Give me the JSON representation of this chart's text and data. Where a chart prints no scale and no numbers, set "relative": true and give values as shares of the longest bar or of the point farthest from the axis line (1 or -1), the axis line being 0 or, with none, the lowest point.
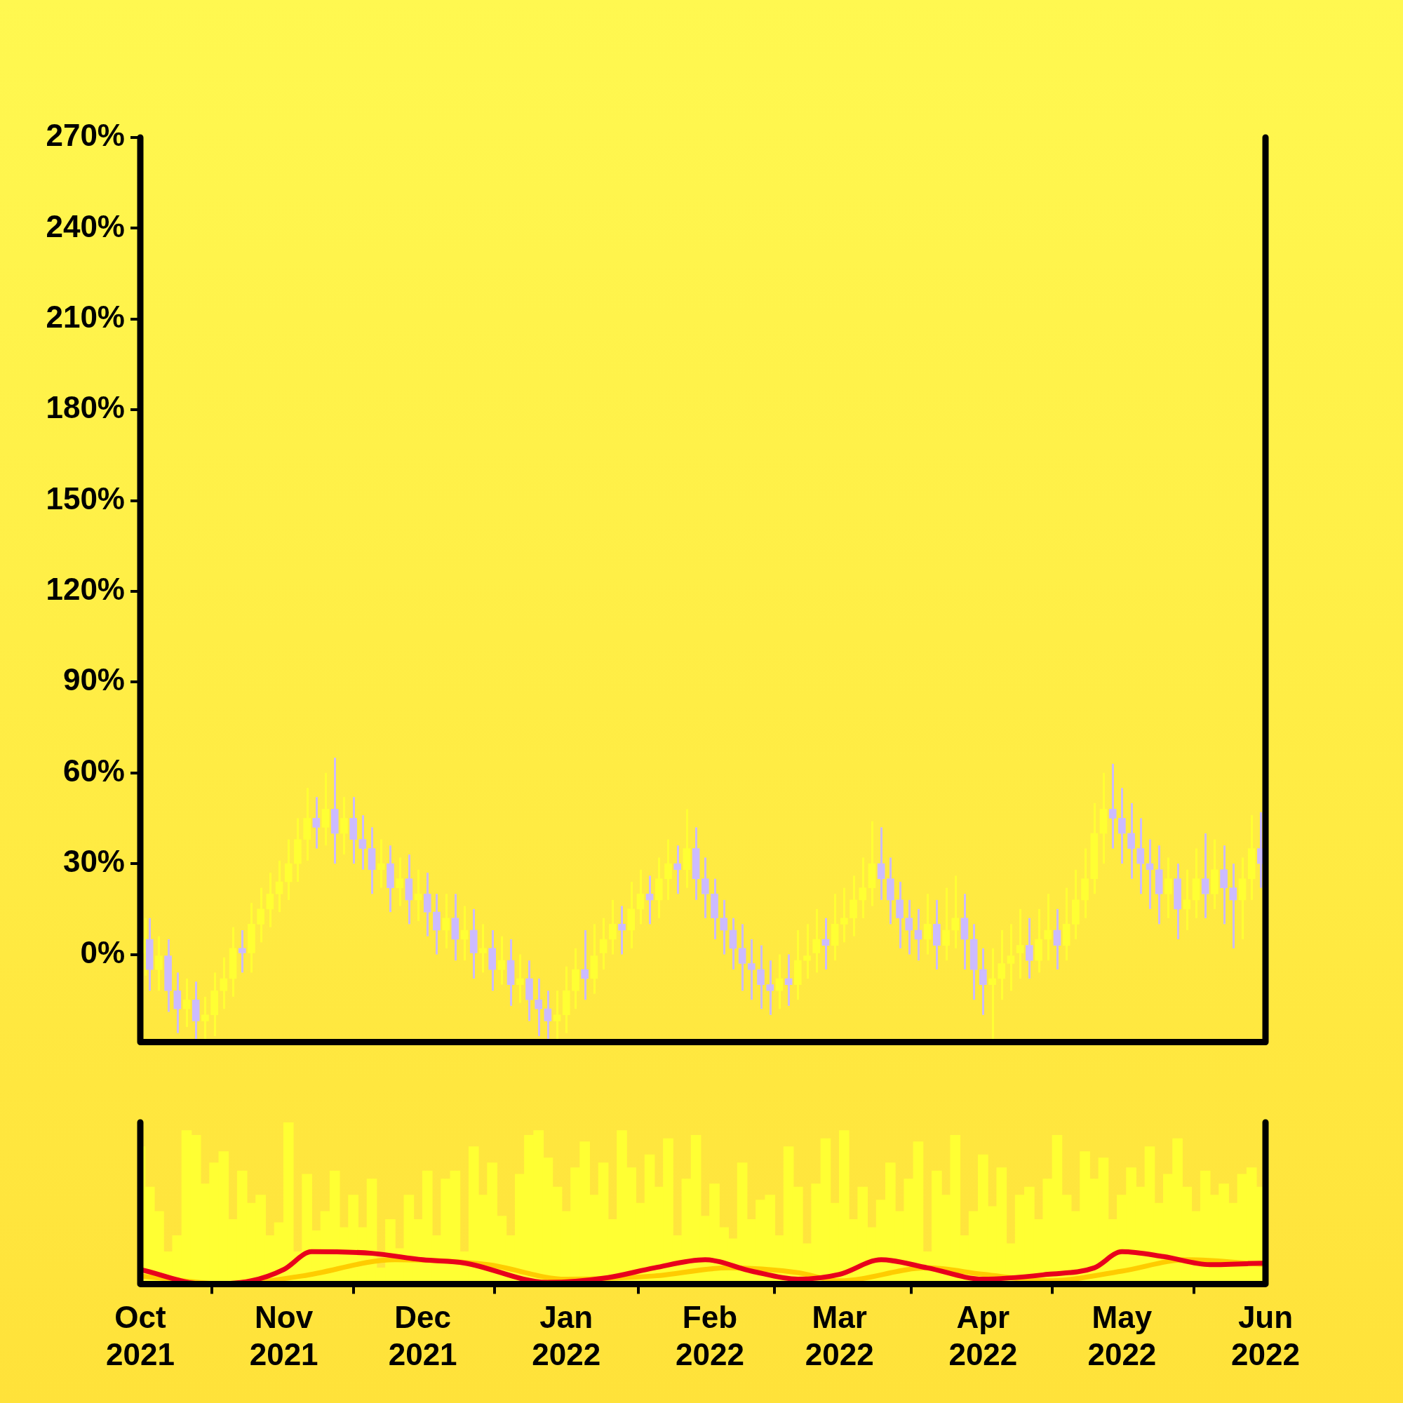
{
  "chart_data": [
    {
      "type": "candlestick",
      "tick_labels": "y",
      "xlim": [
        "2021-10-01",
        "2022-06-01"
      ],
      "ylim": [
        -29,
        270
      ],
      "yticks": [
        {
          "value": 0,
          "label": "0%"
        },
        {
          "value": 30,
          "label": "30%"
        },
        {
          "value": 60,
          "label": "60%"
        },
        {
          "value": 90,
          "label": "90%"
        },
        {
          "value": 120,
          "label": "120%"
        },
        {
          "value": 150,
          "label": "150%"
        },
        {
          "value": 180,
          "label": "180%"
        },
        {
          "value": 210,
          "label": "210%"
        },
        {
          "value": 240,
          "label": "240%"
        },
        {
          "value": 270,
          "label": "270%"
        }
      ],
      "x": [
        "2021-10-02",
        "2021-10-03",
        "2021-10-05",
        "2021-10-07",
        "2021-10-09",
        "2021-10-11",
        "2021-10-13",
        "2021-10-15",
        "2021-10-17",
        "2021-10-19",
        "2021-10-21",
        "2021-10-23",
        "2021-10-25",
        "2021-10-27",
        "2021-10-29",
        "2021-10-31",
        "2021-11-02",
        "2021-11-04",
        "2021-11-06",
        "2021-11-08",
        "2021-11-10",
        "2021-11-12",
        "2021-11-14",
        "2021-11-16",
        "2021-11-18",
        "2021-11-20",
        "2021-11-22",
        "2021-11-24",
        "2021-11-26",
        "2021-11-28",
        "2021-11-30",
        "2021-12-02",
        "2021-12-04",
        "2021-12-06",
        "2021-12-08",
        "2021-12-10",
        "2021-12-12",
        "2021-12-14",
        "2021-12-16",
        "2021-12-18",
        "2021-12-20",
        "2021-12-22",
        "2021-12-24",
        "2021-12-26",
        "2021-12-28",
        "2021-12-30",
        "2022-01-01",
        "2022-01-03",
        "2022-01-05",
        "2022-01-07",
        "2022-01-09",
        "2022-01-11",
        "2022-01-13",
        "2022-01-15",
        "2022-01-17",
        "2022-01-19",
        "2022-01-21",
        "2022-01-23",
        "2022-01-25",
        "2022-01-27",
        "2022-01-29",
        "2022-01-31",
        "2022-02-02",
        "2022-02-04",
        "2022-02-06",
        "2022-02-08",
        "2022-02-10",
        "2022-02-12",
        "2022-02-14",
        "2022-02-16",
        "2022-02-18",
        "2022-02-20",
        "2022-02-22",
        "2022-02-24",
        "2022-02-26",
        "2022-02-28",
        "2022-03-02",
        "2022-03-04",
        "2022-03-06",
        "2022-03-08",
        "2022-03-10",
        "2022-03-12",
        "2022-03-14",
        "2022-03-16",
        "2022-03-18",
        "2022-03-20",
        "2022-03-22",
        "2022-03-24",
        "2022-03-26",
        "2022-03-28",
        "2022-03-30",
        "2022-04-01",
        "2022-04-03",
        "2022-04-05",
        "2022-04-07",
        "2022-04-09",
        "2022-04-11",
        "2022-04-13",
        "2022-04-15",
        "2022-04-17",
        "2022-04-19",
        "2022-04-21",
        "2022-04-23",
        "2022-04-25",
        "2022-04-27",
        "2022-04-29",
        "2022-05-01",
        "2022-05-03",
        "2022-05-05",
        "2022-05-07",
        "2022-05-09",
        "2022-05-11",
        "2022-05-13",
        "2022-05-15",
        "2022-05-17",
        "2022-05-19",
        "2022-05-21",
        "2022-05-23",
        "2022-05-25",
        "2022-05-27",
        "2022-05-29",
        "2022-05-31"
      ],
      "ohlc": [
        [
          0,
          12,
          -7,
          5
        ],
        [
          5,
          12,
          -12,
          -5
        ],
        [
          -5,
          6,
          -12,
          0
        ],
        [
          0,
          5,
          -19,
          -12
        ],
        [
          -12,
          -6,
          -26,
          -18
        ],
        [
          -18,
          -8,
          -24,
          -15
        ],
        [
          -15,
          -9,
          -28,
          -22
        ],
        [
          -22,
          -14,
          -28,
          -20
        ],
        [
          -20,
          -6,
          -27,
          -12
        ],
        [
          -12,
          -1,
          -18,
          -8
        ],
        [
          -8,
          9,
          -14,
          2
        ],
        [
          2,
          8,
          -6,
          0
        ],
        [
          0,
          17,
          -6,
          10
        ],
        [
          10,
          22,
          4,
          15
        ],
        [
          15,
          27,
          9,
          20
        ],
        [
          20,
          31,
          14,
          24
        ],
        [
          24,
          38,
          18,
          30
        ],
        [
          30,
          45,
          24,
          38
        ],
        [
          38,
          55,
          31,
          45
        ],
        [
          45,
          52,
          35,
          42
        ],
        [
          42,
          60,
          36,
          48
        ],
        [
          48,
          65,
          30,
          40
        ],
        [
          40,
          52,
          33,
          45
        ],
        [
          45,
          52,
          30,
          38
        ],
        [
          38,
          46,
          28,
          35
        ],
        [
          35,
          42,
          20,
          28
        ],
        [
          28,
          38,
          22,
          30
        ],
        [
          30,
          36,
          14,
          22
        ],
        [
          22,
          32,
          16,
          25
        ],
        [
          25,
          33,
          10,
          18
        ],
        [
          18,
          28,
          11,
          20
        ],
        [
          20,
          27,
          6,
          14
        ],
        [
          14,
          20,
          0,
          8
        ],
        [
          8,
          20,
          2,
          12
        ],
        [
          12,
          20,
          -2,
          5
        ],
        [
          5,
          16,
          -2,
          8
        ],
        [
          8,
          15,
          -8,
          0
        ],
        [
          0,
          10,
          -6,
          2
        ],
        [
          2,
          8,
          -12,
          -5
        ],
        [
          -5,
          6,
          -10,
          -2
        ],
        [
          -2,
          5,
          -17,
          -10
        ],
        [
          -10,
          0,
          -16,
          -8
        ],
        [
          -8,
          -2,
          -22,
          -15
        ],
        [
          -15,
          -8,
          -27,
          -18
        ],
        [
          -18,
          -12,
          -28,
          -22
        ],
        [
          -22,
          -12,
          -28,
          -20
        ],
        [
          -20,
          -4,
          -26,
          -12
        ],
        [
          -12,
          2,
          -18,
          -5
        ],
        [
          -5,
          8,
          -15,
          -8
        ],
        [
          -8,
          10,
          -13,
          0
        ],
        [
          0,
          12,
          -5,
          5
        ],
        [
          5,
          18,
          0,
          10
        ],
        [
          10,
          16,
          0,
          8
        ],
        [
          8,
          24,
          2,
          15
        ],
        [
          15,
          28,
          10,
          20
        ],
        [
          20,
          26,
          10,
          18
        ],
        [
          18,
          32,
          12,
          25
        ],
        [
          25,
          38,
          18,
          30
        ],
        [
          30,
          36,
          20,
          28
        ],
        [
          28,
          48,
          22,
          35
        ],
        [
          35,
          42,
          18,
          25
        ],
        [
          25,
          32,
          12,
          20
        ],
        [
          20,
          25,
          5,
          12
        ],
        [
          12,
          18,
          0,
          8
        ],
        [
          8,
          12,
          -5,
          2
        ],
        [
          2,
          10,
          -12,
          -3
        ],
        [
          -3,
          5,
          -15,
          -5
        ],
        [
          -5,
          3,
          -18,
          -10
        ],
        [
          -10,
          -2,
          -20,
          -12
        ],
        [
          -12,
          0,
          -18,
          -8
        ],
        [
          -8,
          0,
          -17,
          -10
        ],
        [
          -10,
          8,
          -15,
          -2
        ],
        [
          -2,
          10,
          -8,
          0
        ],
        [
          0,
          15,
          -6,
          5
        ],
        [
          5,
          12,
          -5,
          3
        ],
        [
          3,
          20,
          -2,
          10
        ],
        [
          10,
          22,
          4,
          12
        ],
        [
          12,
          26,
          6,
          18
        ],
        [
          18,
          32,
          12,
          22
        ],
        [
          22,
          44,
          16,
          30
        ],
        [
          30,
          42,
          18,
          25
        ],
        [
          25,
          32,
          10,
          18
        ],
        [
          18,
          24,
          2,
          12
        ],
        [
          12,
          18,
          0,
          8
        ],
        [
          8,
          15,
          -2,
          5
        ],
        [
          5,
          20,
          0,
          10
        ],
        [
          10,
          18,
          -5,
          3
        ],
        [
          3,
          22,
          -2,
          8
        ],
        [
          8,
          26,
          2,
          12
        ],
        [
          12,
          20,
          -5,
          5
        ],
        [
          5,
          10,
          -15,
          -5
        ],
        [
          -5,
          2,
          -20,
          -10
        ],
        [
          -10,
          2,
          -28,
          -8
        ],
        [
          -8,
          8,
          -15,
          -3
        ],
        [
          -3,
          10,
          -12,
          0
        ],
        [
          0,
          15,
          -8,
          3
        ],
        [
          3,
          12,
          -8,
          -2
        ],
        [
          -2,
          15,
          -6,
          5
        ],
        [
          5,
          20,
          -2,
          8
        ],
        [
          8,
          15,
          -5,
          3
        ],
        [
          3,
          22,
          -2,
          10
        ],
        [
          10,
          28,
          5,
          18
        ],
        [
          18,
          35,
          12,
          25
        ],
        [
          25,
          50,
          20,
          40
        ],
        [
          40,
          60,
          30,
          48
        ],
        [
          48,
          63,
          35,
          45
        ],
        [
          45,
          55,
          30,
          40
        ],
        [
          40,
          50,
          25,
          35
        ],
        [
          35,
          45,
          20,
          30
        ],
        [
          30,
          38,
          15,
          28
        ],
        [
          28,
          36,
          10,
          20
        ],
        [
          20,
          32,
          12,
          25
        ],
        [
          25,
          30,
          5,
          15
        ],
        [
          15,
          28,
          8,
          18
        ],
        [
          18,
          35,
          12,
          25
        ],
        [
          25,
          40,
          12,
          20
        ],
        [
          20,
          38,
          15,
          28
        ],
        [
          28,
          36,
          10,
          22
        ],
        [
          22,
          30,
          2,
          18
        ],
        [
          18,
          32,
          5,
          25
        ],
        [
          25,
          46,
          18,
          35
        ],
        [
          35,
          47,
          22,
          30
        ]
      ],
      "colors": [
        "#ffff33",
        "#ccbbff",
        "#ffff33",
        "#ccbbff",
        "#ccbbff",
        "#ffff33",
        "#ccbbff",
        "#ffff33",
        "#ffff33",
        "#ffff33",
        "#ffff33",
        "#ccbbff",
        "#ffff33",
        "#ffff33",
        "#ffff33",
        "#ffff33",
        "#ffff33",
        "#ffff33",
        "#ffff33",
        "#ccbbff",
        "#ffff33",
        "#ccbbff",
        "#ffff33",
        "#ccbbff",
        "#ccbbff",
        "#ccbbff",
        "#ffff33",
        "#ccbbff",
        "#ffff33",
        "#ccbbff",
        "#ffff33",
        "#ccbbff",
        "#ccbbff",
        "#ffff33",
        "#ccbbff",
        "#ffff33",
        "#ccbbff",
        "#ffff33",
        "#ccbbff",
        "#ffff33",
        "#ccbbff",
        "#ffff33",
        "#ccbbff",
        "#ccbbff",
        "#ccbbff",
        "#ffff33",
        "#ffff33",
        "#ffff33",
        "#ccbbff",
        "#ffff33",
        "#ffff33",
        "#ffff33",
        "#ccbbff",
        "#ffff33",
        "#ffff33",
        "#ccbbff",
        "#ffff33",
        "#ffff33",
        "#ccbbff",
        "#ffff33",
        "#ccbbff",
        "#ccbbff",
        "#ccbbff",
        "#ccbbff",
        "#ccbbff",
        "#ccbbff",
        "#ccbbff",
        "#ccbbff",
        "#ccbbff",
        "#ffff33",
        "#ccbbff",
        "#ffff33",
        "#ffff33",
        "#ffff33",
        "#ccbbff",
        "#ffff33",
        "#ffff33",
        "#ffff33",
        "#ffff33",
        "#ffff33",
        "#ccbbff",
        "#ccbbff",
        "#ccbbff",
        "#ccbbff",
        "#ccbbff",
        "#ffff33",
        "#ccbbff",
        "#ffff33",
        "#ffff33",
        "#ccbbff",
        "#ccbbff",
        "#ccbbff",
        "#ffff33",
        "#ffff33",
        "#ffff33",
        "#ffff33",
        "#ccbbff",
        "#ffff33",
        "#ffff33",
        "#ccbbff",
        "#ffff33",
        "#ffff33",
        "#ffff33",
        "#ffff33",
        "#ffff33",
        "#ccbbff",
        "#ccbbff",
        "#ccbbff",
        "#ccbbff",
        "#ccbbff",
        "#ccbbff",
        "#ffff33",
        "#ccbbff",
        "#ffff33",
        "#ffff33",
        "#ccbbff",
        "#ffff33",
        "#ccbbff",
        "#ccbbff",
        "#ffff33",
        "#ffff33",
        "#ccbbff"
      ]
    },
    {
      "type": "bar",
      "relative": true,
      "tick_labels": "x",
      "xlim": [
        "2021-10-01",
        "2022-06-01"
      ],
      "xticks": [
        {
          "value": "2021-10-01",
          "label": "Oct\n2021"
        },
        {
          "value": "2021-11-01",
          "label": "Nov\n2021"
        },
        {
          "value": "2021-12-01",
          "label": "Dec\n2021"
        },
        {
          "value": "2022-01-01",
          "label": "Jan\n2022"
        },
        {
          "value": "2022-02-01",
          "label": "Feb\n2022"
        },
        {
          "value": "2022-03-01",
          "label": "Mar\n2022"
        },
        {
          "value": "2022-04-01",
          "label": "Apr\n2022"
        },
        {
          "value": "2022-05-01",
          "label": "May\n2022"
        },
        {
          "value": "2022-06-01",
          "label": "Jun\n2022"
        }
      ],
      "x": [
        "2021-10-01",
        "2021-10-03",
        "2021-10-05",
        "2021-10-07",
        "2021-10-09",
        "2021-10-11",
        "2021-10-13",
        "2021-10-15",
        "2021-10-17",
        "2021-10-19",
        "2021-10-21",
        "2021-10-23",
        "2021-10-25",
        "2021-10-27",
        "2021-10-29",
        "2021-10-31",
        "2021-11-02",
        "2021-11-04",
        "2021-11-06",
        "2021-11-08",
        "2021-11-10",
        "2021-11-12",
        "2021-11-14",
        "2021-11-16",
        "2021-11-18",
        "2021-11-20",
        "2021-11-22",
        "2021-11-24",
        "2021-11-26",
        "2021-11-28",
        "2021-11-30",
        "2021-12-02",
        "2021-12-04",
        "2021-12-06",
        "2021-12-08",
        "2021-12-10",
        "2021-12-12",
        "2021-12-14",
        "2021-12-16",
        "2021-12-18",
        "2021-12-20",
        "2021-12-22",
        "2021-12-24",
        "2021-12-26",
        "2021-12-28",
        "2021-12-30",
        "2022-01-01",
        "2022-01-03",
        "2022-01-05",
        "2022-01-07",
        "2022-01-09",
        "2022-01-11",
        "2022-01-13",
        "2022-01-15",
        "2022-01-17",
        "2022-01-19",
        "2022-01-21",
        "2022-01-23",
        "2022-01-25",
        "2022-01-27",
        "2022-01-29",
        "2022-01-31",
        "2022-02-02",
        "2022-02-04",
        "2022-02-06",
        "2022-02-08",
        "2022-02-10",
        "2022-02-12",
        "2022-02-14",
        "2022-02-16",
        "2022-02-18",
        "2022-02-20",
        "2022-02-22",
        "2022-02-24",
        "2022-02-26",
        "2022-02-28",
        "2022-03-02",
        "2022-03-04",
        "2022-03-06",
        "2022-03-08",
        "2022-03-10",
        "2022-03-12",
        "2022-03-14",
        "2022-03-16",
        "2022-03-18",
        "2022-03-20",
        "2022-03-22",
        "2022-03-24",
        "2022-03-26",
        "2022-03-28",
        "2022-03-30",
        "2022-04-01",
        "2022-04-03",
        "2022-04-05",
        "2022-04-07",
        "2022-04-09",
        "2022-04-11",
        "2022-04-13",
        "2022-04-15",
        "2022-04-17",
        "2022-04-19",
        "2022-04-21",
        "2022-04-23",
        "2022-04-25",
        "2022-04-27",
        "2022-04-29",
        "2022-05-01",
        "2022-05-03",
        "2022-05-05",
        "2022-05-07",
        "2022-05-09",
        "2022-05-11",
        "2022-05-13",
        "2022-05-15",
        "2022-05-17",
        "2022-05-19",
        "2022-05-21",
        "2022-05-23",
        "2022-05-25",
        "2022-05-27",
        "2022-05-29",
        "2022-05-31"
      ],
      "series": [
        {
          "type": "bar",
          "color": "#ffff33",
          "values": [
            0.85,
            0.6,
            0.45,
            0.2,
            0.3,
            0.95,
            0.92,
            0.62,
            0.75,
            0.82,
            0.4,
            0.7,
            0.5,
            0.55,
            0.3,
            0.38,
            1,
            0.2,
            0.68,
            0.33,
            0.45,
            0.7,
            0.35,
            0.55,
            0.35,
            0.65,
            0.1,
            0.4,
            0.22,
            0.55,
            0.4,
            0.7,
            0.3,
            0.65,
            0.7,
            0.2,
            0.85,
            0.55,
            0.75,
            0.42,
            0.3,
            0.68,
            0.92,
            0.95,
            0.78,
            0.6,
            0.45,
            0.72,
            0.88,
            0.55,
            0.75,
            0.4,
            0.95,
            0.72,
            0.5,
            0.8,
            0.6,
            0.9,
            0.3,
            0.65,
            0.92,
            0.42,
            0.62,
            0.35,
            0.28,
            0.75,
            0.4,
            0.52,
            0.55,
            0.3,
            0.85,
            0.6,
            0.25,
            0.62,
            0.9,
            0.5,
            0.95,
            0.4,
            0.6,
            0.35,
            0.52,
            0.75,
            0.45,
            0.65,
            0.88,
            0.2,
            0.7,
            0.55,
            0.92,
            0.3,
            0.45,
            0.8,
            0.48,
            0.72,
            0.25,
            0.55,
            0.6,
            0.4,
            0.65,
            0.92,
            0.55,
            0.45,
            0.82,
            0.65,
            0.78,
            0.4,
            0.55,
            0.72,
            0.6,
            0.85,
            0.5,
            0.68,
            0.9,
            0.6,
            0.45,
            0.7,
            0.55,
            0.62,
            0.5,
            0.68,
            0.72,
            0.6
          ]
        },
        {
          "type": "line",
          "color": "#ffcc00",
          "x": [
            "2021-10-01",
            "2021-10-20",
            "2021-11-05",
            "2021-11-25",
            "2021-12-15",
            "2022-01-01",
            "2022-01-20",
            "2022-02-05",
            "2022-02-20",
            "2022-03-01",
            "2022-03-20",
            "2022-04-01",
            "2022-04-15",
            "2022-05-01",
            "2022-05-15",
            "2022-06-01"
          ],
          "values": [
            0.05,
            0,
            0.05,
            0.15,
            0.12,
            0.03,
            0.05,
            0.1,
            0.07,
            0.02,
            0.1,
            0.06,
            0.02,
            0.08,
            0.15,
            0.12
          ]
        },
        {
          "type": "line",
          "color": "#e8001c",
          "x": [
            "2021-10-01",
            "2021-10-15",
            "2021-10-25",
            "2021-11-01",
            "2021-11-07",
            "2021-11-20",
            "2021-12-01",
            "2021-12-10",
            "2021-12-28",
            "2022-01-10",
            "2022-01-20",
            "2022-01-31",
            "2022-02-10",
            "2022-02-20",
            "2022-03-01",
            "2022-03-10",
            "2022-03-20",
            "2022-04-01",
            "2022-04-15",
            "2022-04-25",
            "2022-05-01",
            "2022-05-10",
            "2022-05-20",
            "2022-06-01"
          ],
          "values": [
            0.09,
            0,
            0.02,
            0.09,
            0.2,
            0.19,
            0.15,
            0.13,
            0.01,
            0.04,
            0.1,
            0.15,
            0.08,
            0.03,
            0.06,
            0.15,
            0.1,
            0.03,
            0.06,
            0.1,
            0.2,
            0.17,
            0.12,
            0.13
          ]
        }
      ]
    }
  ]
}
